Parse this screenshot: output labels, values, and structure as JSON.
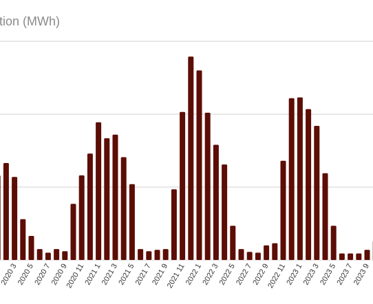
{
  "chart_data": {
    "type": "bar",
    "title": "tion (MWh)",
    "xlabel": "",
    "ylabel": "",
    "ylim": [
      0,
      300
    ],
    "grid": true,
    "bar_color": "#5c0d05",
    "gridline_values": [
      0,
      100,
      200,
      300
    ],
    "categories": [
      "2020 1",
      "2020 2",
      "2020 3",
      "2020 4",
      "2020 5",
      "2020 6",
      "2020 7",
      "2020 8",
      "2020 9",
      "2020 10",
      "2020 11",
      "2020 12",
      "2021 1",
      "2021 2",
      "2021 3",
      "2021 4",
      "2021 5",
      "2021 6",
      "2021 7",
      "2021 8",
      "2021 9",
      "2021 10",
      "2021 11",
      "2021 12",
      "2022 1",
      "2022 2",
      "2022 3",
      "2022 4",
      "2022 5",
      "2022 6",
      "2022 7",
      "2022 8",
      "2022 9",
      "2022 10",
      "2022 11",
      "2022 12",
      "2023 1",
      "2023 2",
      "2023 3",
      "2023 4",
      "2023 5",
      "2023 6",
      "2023 7",
      "2023 8",
      "2023 9",
      "2023 10"
    ],
    "tick_labels": [
      "",
      "",
      "2020 3",
      "",
      "2020 5",
      "",
      "2020 7",
      "",
      "2020 9",
      "",
      "2020 11",
      "",
      "2021 1",
      "",
      "2021 3",
      "",
      "2021 5",
      "",
      "2021 7",
      "",
      "2021 9",
      "",
      "2021 11",
      "",
      "2022 1",
      "",
      "2022 3",
      "",
      "2022 5",
      "",
      "2022 7",
      "",
      "2022 9",
      "",
      "2022 11",
      "",
      "2023 1",
      "",
      "2023 3",
      "",
      "2023 5",
      "",
      "2023 7",
      "",
      "2023 9",
      ""
    ],
    "values": [
      116,
      133,
      114,
      56,
      33,
      15,
      10,
      15,
      12,
      77,
      116,
      146,
      189,
      167,
      172,
      141,
      104,
      15,
      12,
      14,
      15,
      97,
      203,
      279,
      260,
      202,
      158,
      131,
      47,
      15,
      11,
      10,
      20,
      23,
      136,
      222,
      223,
      207,
      184,
      119,
      47,
      9,
      9,
      9,
      14,
      26
    ]
  }
}
